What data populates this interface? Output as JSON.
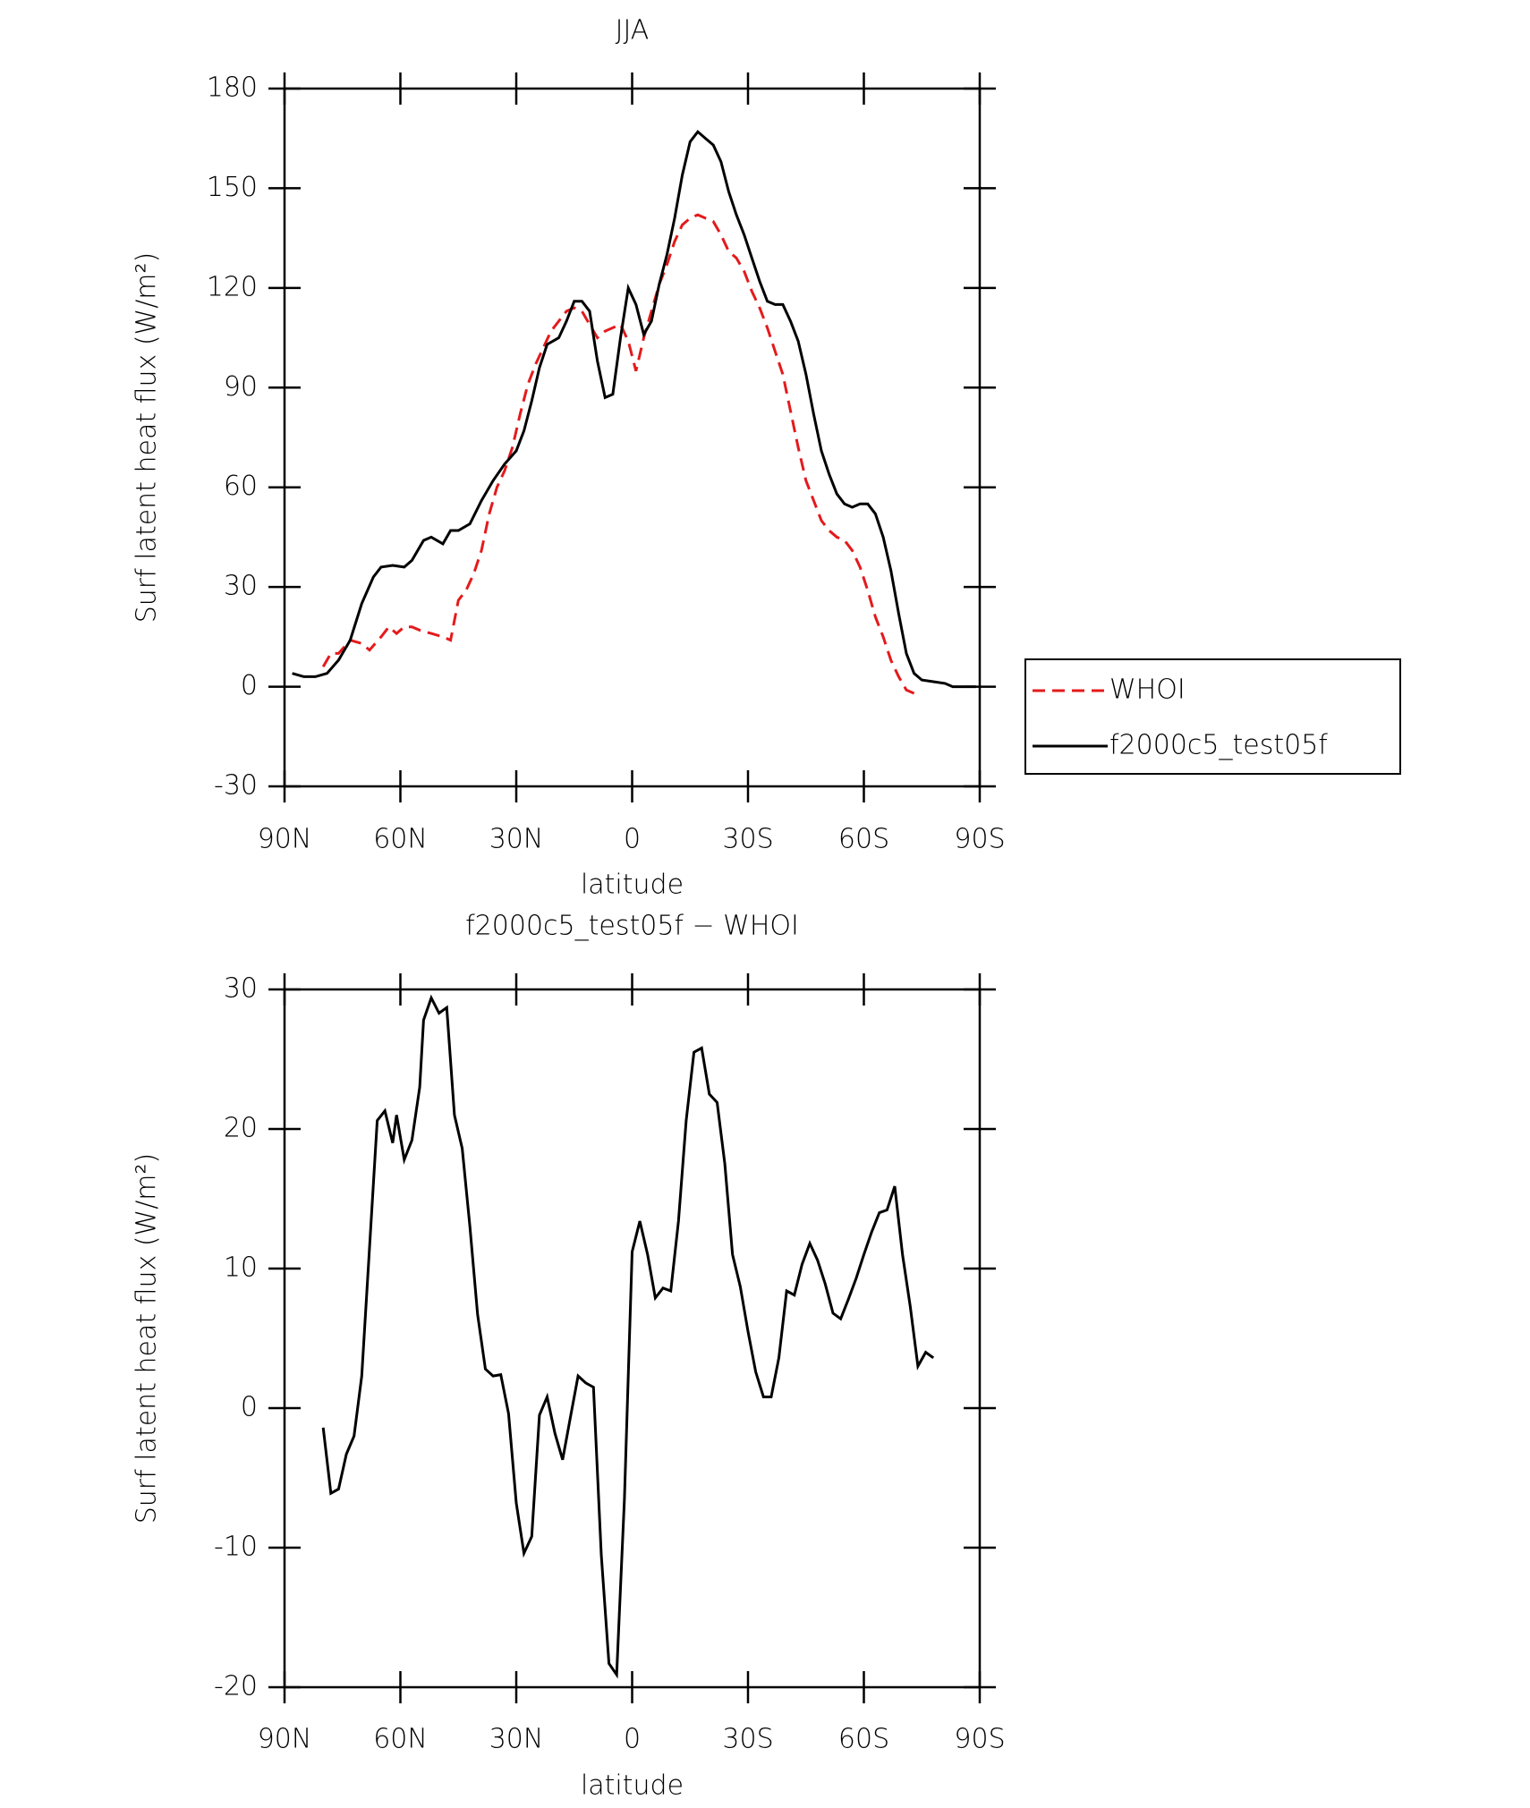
{
  "chart_data": [
    {
      "type": "line",
      "title": "JJA",
      "xlabel": "latitude",
      "ylabel": "Surf latent heat flux (W/m²)",
      "xlim": [
        90,
        -90
      ],
      "ylim": [
        -30,
        180
      ],
      "xticks": [
        {
          "value": 90,
          "label": "90N"
        },
        {
          "value": 60,
          "label": "60N"
        },
        {
          "value": 30,
          "label": "30N"
        },
        0,
        {
          "value": -30,
          "label": "30S"
        },
        {
          "value": -60,
          "label": "60S"
        },
        {
          "value": -90,
          "label": "90S"
        }
      ],
      "yticks": [
        -30,
        0,
        30,
        60,
        90,
        120,
        150,
        180
      ],
      "legend": "right",
      "series": [
        {
          "name": "WHOI",
          "color": "#e41a1c",
          "line_style": "dashed",
          "x": [
            80,
            78,
            76,
            73,
            70,
            68,
            65,
            63,
            61,
            59,
            57,
            55,
            52,
            49,
            47,
            45,
            43,
            41,
            39,
            37,
            35,
            33,
            31,
            29,
            27,
            25,
            23,
            21,
            19,
            17,
            15,
            13,
            11,
            9,
            7,
            5,
            3,
            1,
            -1,
            -3,
            -5,
            -7,
            -9,
            -11,
            -13,
            -15,
            -17,
            -19,
            -21,
            -23,
            -25,
            -27,
            -29,
            -31,
            -33,
            -35,
            -37,
            -39,
            -41,
            -43,
            -45,
            -47,
            -49,
            -51,
            -53,
            -55,
            -57,
            -59,
            -61,
            -63,
            -65,
            -67,
            -69,
            -71,
            -73
          ],
          "values": [
            6,
            10,
            10,
            14,
            13,
            11,
            15,
            18,
            16,
            18,
            18,
            17,
            16,
            15,
            14,
            26,
            29,
            34,
            41,
            52,
            60,
            65,
            72,
            82,
            91,
            97,
            102,
            107,
            110,
            113,
            114,
            113,
            109,
            105,
            107,
            108,
            109,
            104,
            95,
            105,
            113,
            121,
            127,
            134,
            139,
            141,
            142,
            141,
            140,
            136,
            131,
            129,
            125,
            119,
            114,
            108,
            101,
            94,
            83,
            72,
            62,
            56,
            50,
            47,
            45,
            44,
            41,
            36,
            29,
            21,
            15,
            8,
            3,
            -1,
            -2
          ]
        },
        {
          "name": "f2000c5_test05f",
          "color": "#000000",
          "line_style": "solid",
          "x": [
            88,
            85,
            82,
            79,
            76,
            73,
            70,
            67,
            65,
            62,
            59,
            57,
            54,
            52,
            49,
            47,
            45,
            42,
            39,
            36,
            33,
            30,
            28,
            26,
            24,
            22,
            19,
            17,
            15,
            13,
            11,
            9,
            7,
            5,
            3,
            1,
            -1,
            -3,
            -5,
            -7,
            -9,
            -11,
            -13,
            -15,
            -17,
            -19,
            -21,
            -23,
            -25,
            -27,
            -29,
            -31,
            -33,
            -35,
            -37,
            -39,
            -41,
            -43,
            -45,
            -47,
            -49,
            -51,
            -53,
            -55,
            -57,
            -59,
            -61,
            -63,
            -65,
            -67,
            -69,
            -71,
            -73,
            -75,
            -78,
            -81,
            -83,
            -86,
            -89
          ],
          "values": [
            4,
            3,
            3,
            4,
            8,
            14,
            25,
            33,
            36,
            36.5,
            36,
            38,
            44,
            45,
            43,
            47,
            47,
            49,
            56,
            62,
            67,
            71,
            77,
            86,
            96,
            103,
            105,
            110,
            116,
            116,
            113,
            98,
            87,
            88,
            105,
            120,
            115,
            106,
            110,
            121,
            130,
            141,
            154,
            164,
            167,
            165,
            163,
            158,
            149,
            142,
            136,
            129,
            122,
            116,
            115,
            115,
            110,
            104,
            94,
            82,
            71,
            64,
            58,
            55,
            54,
            55,
            55,
            52,
            45,
            35,
            22,
            10,
            4,
            2,
            1.5,
            1,
            0,
            0,
            0
          ]
        }
      ]
    },
    {
      "type": "line",
      "title": "f2000c5_test05f − WHOI",
      "xlabel": "latitude",
      "ylabel": "Surf latent heat flux (W/m²)",
      "xlim": [
        90,
        -90
      ],
      "ylim": [
        -20,
        30
      ],
      "xticks": [
        {
          "value": 90,
          "label": "90N"
        },
        {
          "value": 60,
          "label": "60N"
        },
        {
          "value": 30,
          "label": "30N"
        },
        0,
        {
          "value": -30,
          "label": "30S"
        },
        {
          "value": -60,
          "label": "60S"
        },
        {
          "value": -90,
          "label": "90S"
        }
      ],
      "yticks": [
        -20,
        -10,
        0,
        10,
        20,
        30
      ],
      "color": "#000000",
      "x": [
        80,
        78,
        76,
        74,
        72,
        70,
        68,
        66,
        64,
        62,
        61,
        59,
        57,
        55,
        54,
        52,
        50,
        48,
        46,
        44,
        42,
        40,
        38,
        36,
        34,
        32,
        30,
        28,
        26,
        24,
        22,
        20,
        18,
        16,
        14,
        12,
        10,
        8,
        6,
        4,
        2,
        0,
        -2,
        -4,
        -6,
        -8,
        -10,
        -12,
        -14,
        -16,
        -18,
        -20,
        -22,
        -24,
        -26,
        -28,
        -30,
        -32,
        -34,
        -36,
        -38,
        -40,
        -42,
        -44,
        -46,
        -48,
        -50,
        -52,
        -54,
        -56,
        -58,
        -60,
        -62,
        -64,
        -66,
        -68,
        -70,
        -72,
        -74,
        -76,
        -78
      ],
      "values": [
        -1.4,
        -6.1,
        -5.8,
        -3.3,
        -2,
        2.3,
        11.5,
        20.6,
        21.3,
        19,
        21,
        17.8,
        19.2,
        23,
        27.8,
        29.4,
        28.3,
        28.7,
        21,
        18.6,
        13,
        6.7,
        2.8,
        2.3,
        2.4,
        -0.4,
        -6.8,
        -10.4,
        -9.2,
        -0.5,
        0.8,
        -1.8,
        -3.7,
        -0.7,
        2.3,
        1.8,
        1.5,
        -10.5,
        -18.3,
        -19.1,
        -6.5,
        11.2,
        13.4,
        11,
        7.9,
        8.6,
        8.4,
        13.4,
        20.6,
        25.5,
        25.8,
        22.5,
        21.9,
        17.5,
        11,
        8.7,
        5.5,
        2.6,
        0.8,
        0.8,
        3.6,
        8.4,
        8.1,
        10.3,
        11.8,
        10.6,
        8.9,
        6.8,
        6.4,
        7.8,
        9.3,
        11,
        12.6,
        14,
        14.2,
        15.9,
        11,
        7.3,
        3,
        4,
        3.6
      ]
    }
  ]
}
